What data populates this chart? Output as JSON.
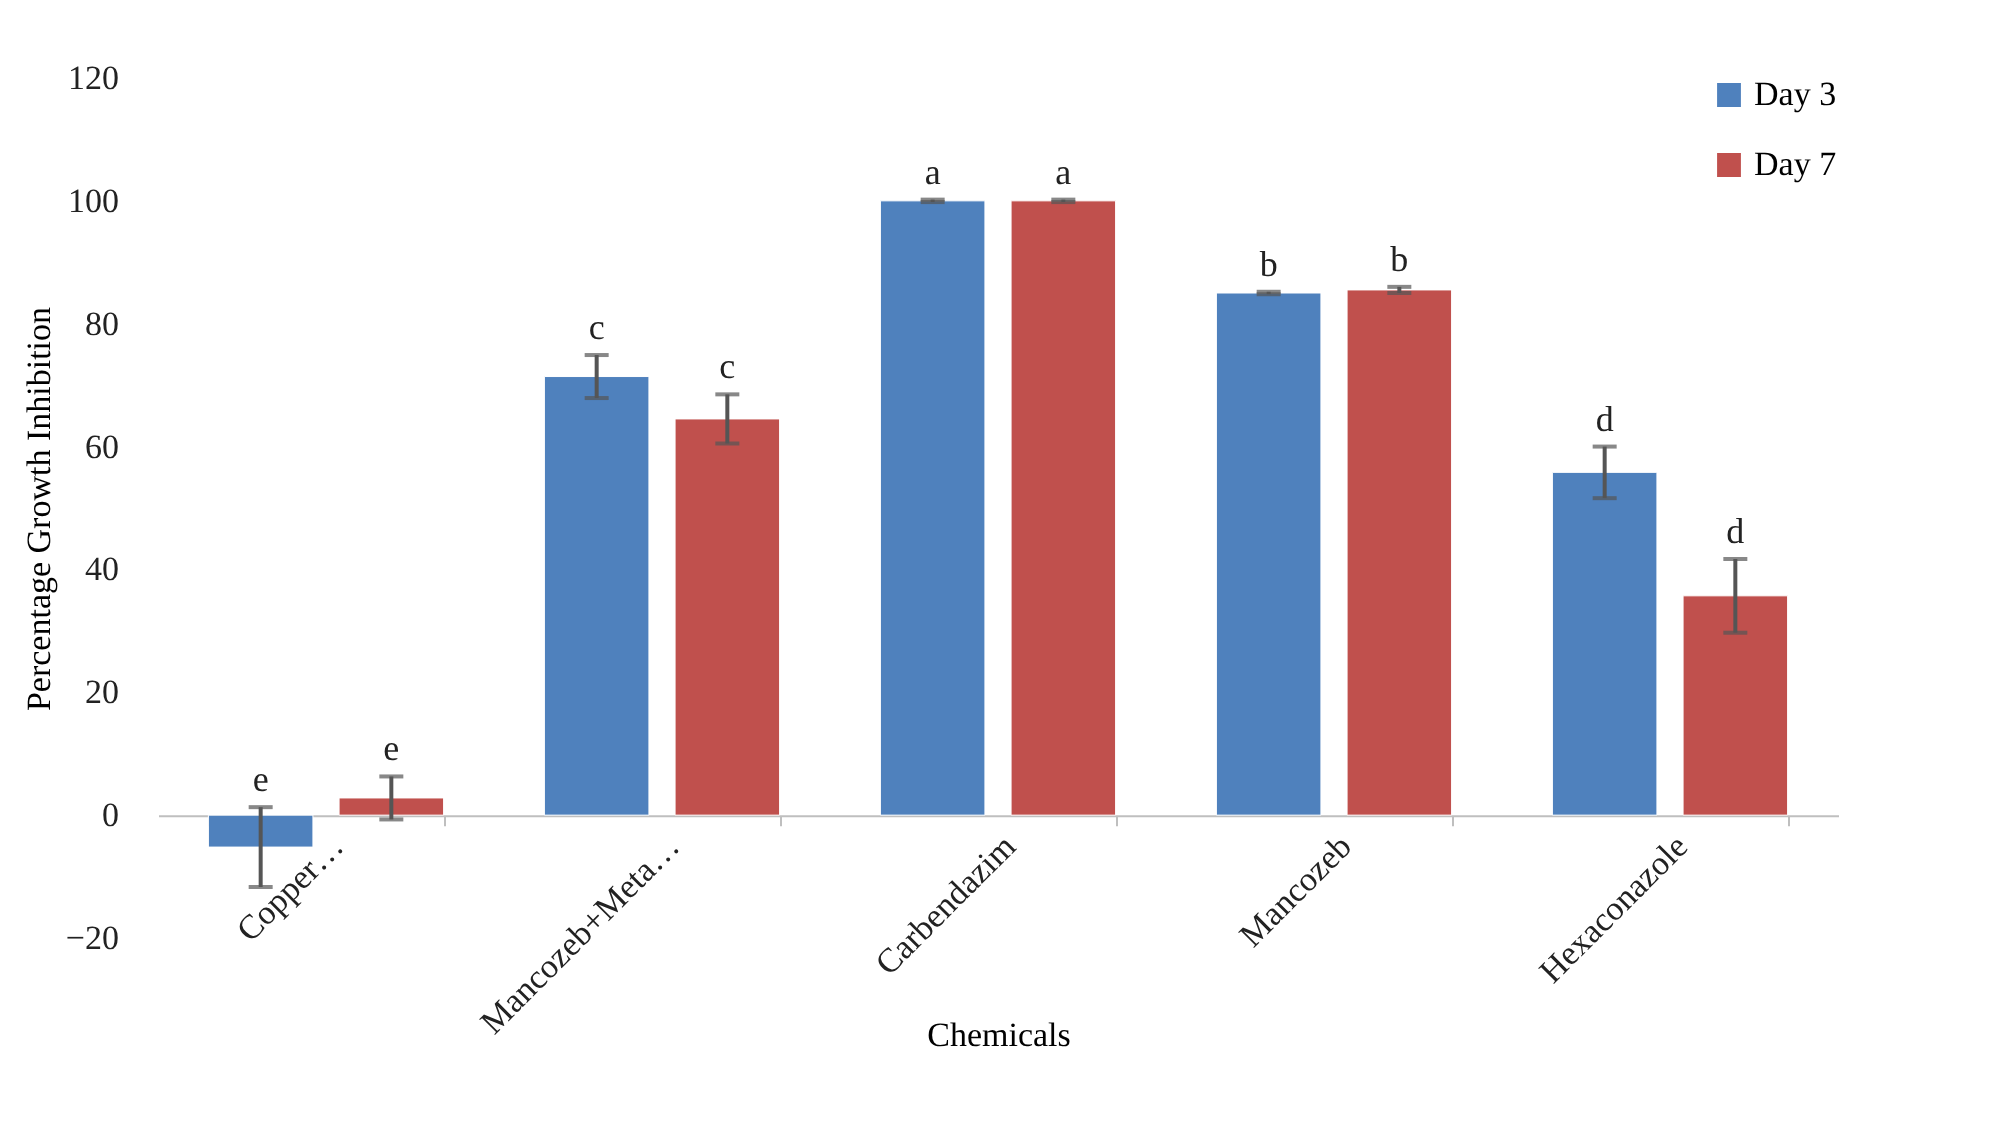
{
  "chart_data": {
    "type": "bar",
    "xlabel": "Chemicals",
    "ylabel": "Percentage Growth Inhibition",
    "categories": [
      "Copper…",
      "Mancozeb+Meta…",
      "Carbendazim",
      "Mancozeb",
      "Hexaconazole"
    ],
    "series": [
      {
        "name": "Day 3",
        "color": "#4f81bd",
        "values": [
          -5.2,
          71.4,
          100,
          85,
          55.8
        ],
        "errors": [
          6.5,
          3.5,
          0.2,
          0.2,
          4.2
        ],
        "value_labels": [
          "e",
          "c",
          "a",
          "b",
          "d"
        ]
      },
      {
        "name": "Day 7",
        "color": "#c0504d",
        "values": [
          2.8,
          64.5,
          100,
          85.5,
          35.7
        ],
        "errors": [
          3.5,
          4,
          0.2,
          0.5,
          6
        ],
        "value_labels": [
          "e",
          "c",
          "a",
          "b",
          "d"
        ]
      }
    ],
    "ylim": [
      -20,
      120
    ],
    "yticks": [
      -20,
      0,
      20,
      40,
      60,
      80,
      100,
      120
    ],
    "grid": false,
    "legend": "top right"
  }
}
